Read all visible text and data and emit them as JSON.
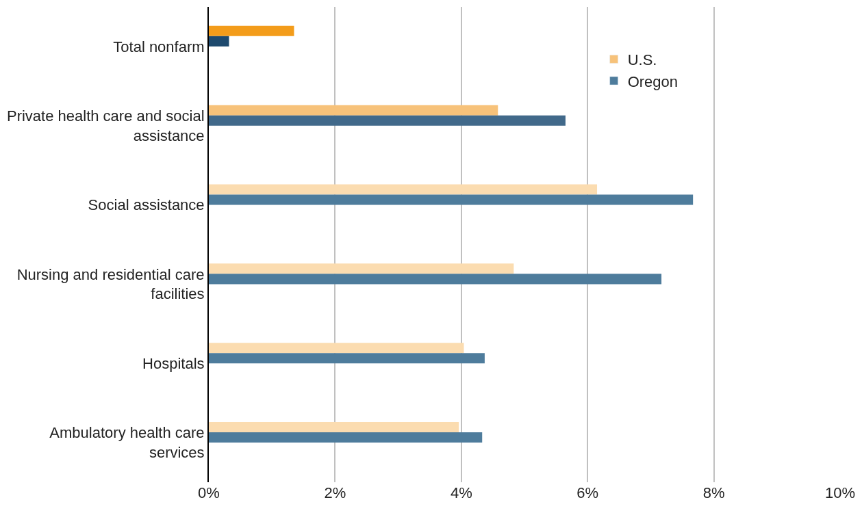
{
  "chart_data": {
    "type": "bar",
    "orientation": "horizontal",
    "categories": [
      "Total nonfarm",
      "Private health care and social assistance",
      "Social assistance",
      "Nursing and residential care facilities",
      "Hospitals",
      "Ambulatory health care services"
    ],
    "series": [
      {
        "name": "U.S.",
        "color": "#f7c27a",
        "colors": [
          "#f39c1a",
          "#f7c27a",
          "#fbdcb0",
          "#fbdcb0",
          "#fbdcb0",
          "#fbdcb0"
        ],
        "values": [
          1.35,
          4.58,
          6.15,
          4.83,
          4.04,
          3.96
        ]
      },
      {
        "name": "Oregon",
        "color": "#4e7c9c",
        "colors": [
          "#1e4a6e",
          "#41698a",
          "#4e7c9c",
          "#4e7c9c",
          "#4e7c9c",
          "#4e7c9c"
        ],
        "values": [
          0.32,
          5.65,
          7.67,
          7.17,
          4.37,
          4.33
        ]
      }
    ],
    "xlim": [
      0,
      10
    ],
    "xticks": [
      {
        "value": 0,
        "label": "0%"
      },
      {
        "value": 2,
        "label": "2%"
      },
      {
        "value": 4,
        "label": "4%"
      },
      {
        "value": 6,
        "label": "6%"
      },
      {
        "value": 8,
        "label": "8%"
      },
      {
        "value": 10,
        "label": "10%"
      }
    ],
    "grid": "x",
    "legend": "top right"
  }
}
